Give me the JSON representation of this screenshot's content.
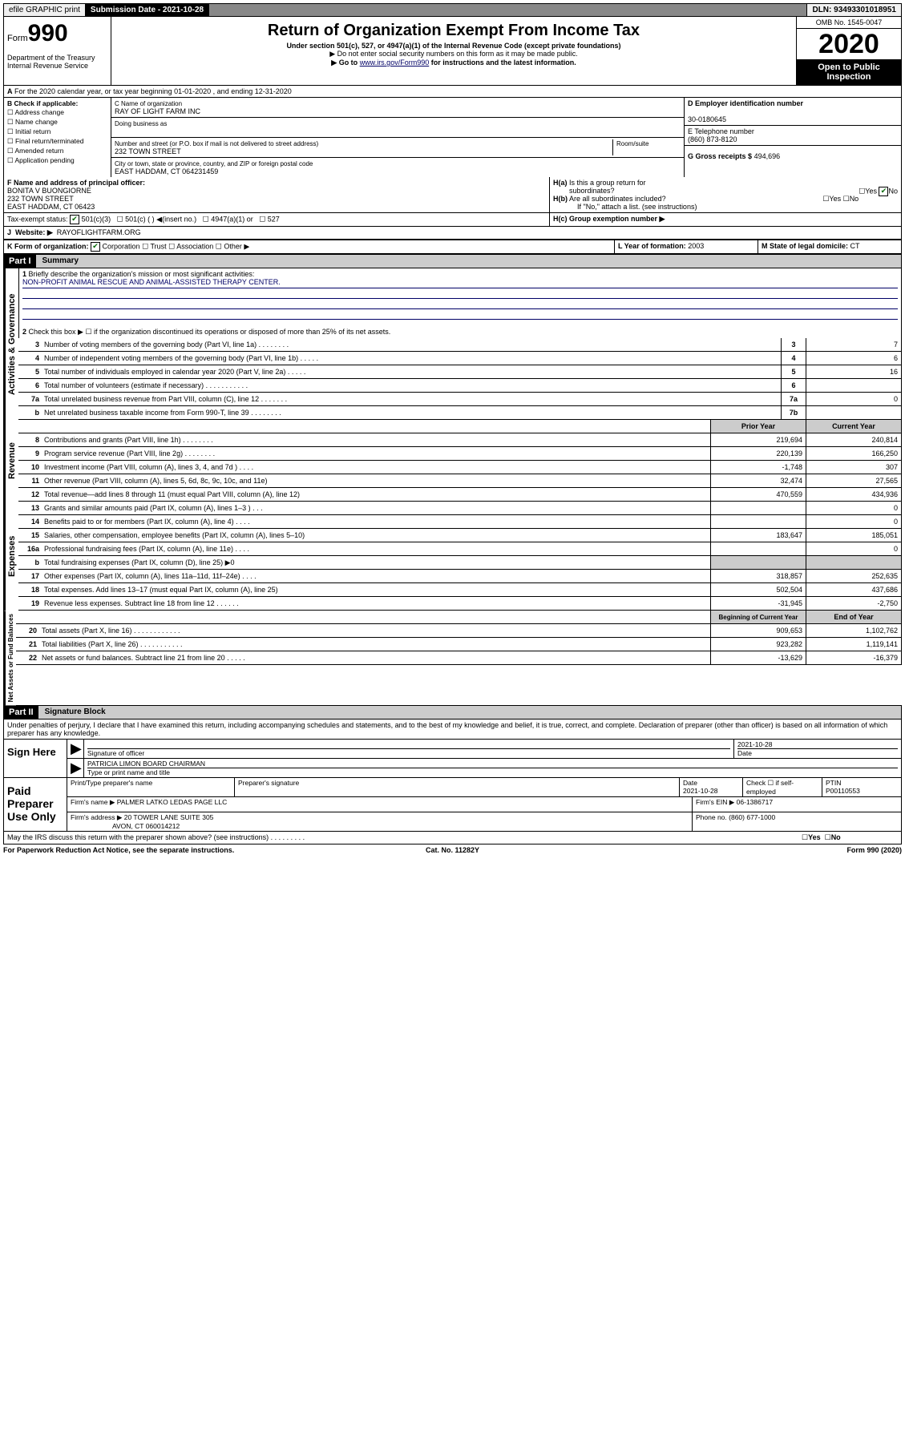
{
  "topbar": {
    "efile": "efile GRAPHIC print",
    "submission": "Submission Date - 2021-10-28",
    "dln": "DLN: 93493301018951"
  },
  "header": {
    "form_prefix": "Form",
    "form_num": "990",
    "dept": "Department of the Treasury\nInternal Revenue Service",
    "title": "Return of Organization Exempt From Income Tax",
    "sub": "Under section 501(c), 527, or 4947(a)(1) of the Internal Revenue Code (except private foundations)",
    "note1": "▶ Do not enter social security numbers on this form as it may be made public.",
    "note2_pre": "▶ Go to ",
    "note2_link": "www.irs.gov/Form990",
    "note2_post": " for instructions and the latest information.",
    "omb": "OMB No. 1545-0047",
    "year": "2020",
    "open": "Open to Public Inspection"
  },
  "row_a": "For the 2020 calendar year, or tax year beginning 01-01-2020     , and ending 12-31-2020",
  "box_b": {
    "label": "B Check if applicable:",
    "opts": [
      "Address change",
      "Name change",
      "Initial return",
      "Final return/terminated",
      "Amended return",
      "Application pending"
    ]
  },
  "box_c": {
    "name_label": "C Name of organization",
    "name": "RAY OF LIGHT FARM INC",
    "dba_label": "Doing business as",
    "addr_label": "Number and street (or P.O. box if mail is not delivered to street address)",
    "room_label": "Room/suite",
    "addr": "232 TOWN STREET",
    "city_label": "City or town, state or province, country, and ZIP or foreign postal code",
    "city": "EAST HADDAM, CT  064231459"
  },
  "box_d": {
    "label": "D Employer identification number",
    "val": "30-0180645"
  },
  "box_e": {
    "label": "E Telephone number",
    "val": "(860) 873-8120"
  },
  "box_g": {
    "label": "G Gross receipts $",
    "val": "494,696"
  },
  "box_f": {
    "label": "F Name and address of principal officer:",
    "name": "BONITA V BUONGIORNE",
    "addr1": "232 TOWN STREET",
    "addr2": "EAST HADDAM, CT  06423"
  },
  "box_h": {
    "a": "H(a) Is this a group return for subordinates?",
    "b": "H(b) Are all subordinates included?",
    "b_note": "If \"No,\" attach a list. (see instructions)",
    "c": "H(c) Group exemption number ▶",
    "yes": "Yes",
    "no": "No"
  },
  "tax_status": {
    "label": "Tax-exempt status:",
    "o1": "501(c)(3)",
    "o2": "501(c) (  ) ◀(insert no.)",
    "o3": "4947(a)(1) or",
    "o4": "527"
  },
  "website": {
    "label": "Website: ▶",
    "val": "RAYOFLIGHTFARM.ORG"
  },
  "box_k": {
    "label": "K Form of organization:",
    "o1": "Corporation",
    "o2": "Trust",
    "o3": "Association",
    "o4": "Other ▶"
  },
  "box_l": {
    "label": "L Year of formation:",
    "val": "2003"
  },
  "box_m": {
    "label": "M State of legal domicile:",
    "val": "CT"
  },
  "part1": {
    "num": "Part I",
    "title": "Summary",
    "q1": "Briefly describe the organization's mission or most significant activities:",
    "q1_ans": "NON-PROFIT ANIMAL RESCUE AND ANIMAL-ASSISTED THERAPY CENTER.",
    "q2": "Check this box ▶ ☐  if the organization discontinued its operations or disposed of more than 25% of its net assets."
  },
  "section_labels": {
    "gov": "Activities & Governance",
    "rev": "Revenue",
    "exp": "Expenses",
    "net": "Net Assets or Fund Balances"
  },
  "gov_lines": [
    {
      "n": "3",
      "t": "Number of voting members of the governing body (Part VI, line 1a)  .   .   .   .   .   .   .   .",
      "box": "3",
      "v": "7"
    },
    {
      "n": "4",
      "t": "Number of independent voting members of the governing body (Part VI, line 1b)  .   .   .   .   .",
      "box": "4",
      "v": "6"
    },
    {
      "n": "5",
      "t": "Total number of individuals employed in calendar year 2020 (Part V, line 2a)  .   .   .   .   .",
      "box": "5",
      "v": "16"
    },
    {
      "n": "6",
      "t": "Total number of volunteers (estimate if necessary)  .   .   .   .   .   .   .   .   .   .   .",
      "box": "6",
      "v": ""
    },
    {
      "n": "7a",
      "t": "Total unrelated business revenue from Part VIII, column (C), line 12  .   .   .   .   .   .   .",
      "box": "7a",
      "v": "0"
    },
    {
      "n": "b",
      "t": "Net unrelated business taxable income from Form 990-T, line 39  .   .   .   .   .   .   .   .",
      "box": "7b",
      "v": ""
    }
  ],
  "col_headers": {
    "prior": "Prior Year",
    "current": "Current Year",
    "beg": "Beginning of Current Year",
    "end": "End of Year"
  },
  "rev_lines": [
    {
      "n": "8",
      "t": "Contributions and grants (Part VIII, line 1h)  .   .   .   .   .   .   .   .",
      "p": "219,694",
      "c": "240,814"
    },
    {
      "n": "9",
      "t": "Program service revenue (Part VIII, line 2g)  .   .   .   .   .   .   .   .",
      "p": "220,139",
      "c": "166,250"
    },
    {
      "n": "10",
      "t": "Investment income (Part VIII, column (A), lines 3, 4, and 7d )  .   .   .   .",
      "p": "-1,748",
      "c": "307"
    },
    {
      "n": "11",
      "t": "Other revenue (Part VIII, column (A), lines 5, 6d, 8c, 9c, 10c, and 11e)",
      "p": "32,474",
      "c": "27,565"
    },
    {
      "n": "12",
      "t": "Total revenue—add lines 8 through 11 (must equal Part VIII, column (A), line 12)",
      "p": "470,559",
      "c": "434,936"
    }
  ],
  "exp_lines": [
    {
      "n": "13",
      "t": "Grants and similar amounts paid (Part IX, column (A), lines 1–3 )  .   .   .",
      "p": "",
      "c": "0"
    },
    {
      "n": "14",
      "t": "Benefits paid to or for members (Part IX, column (A), line 4)  .   .   .   .",
      "p": "",
      "c": "0"
    },
    {
      "n": "15",
      "t": "Salaries, other compensation, employee benefits (Part IX, column (A), lines 5–10)",
      "p": "183,647",
      "c": "185,051"
    },
    {
      "n": "16a",
      "t": "Professional fundraising fees (Part IX, column (A), line 11e)  .   .   .   .",
      "p": "",
      "c": "0"
    },
    {
      "n": "b",
      "t": "Total fundraising expenses (Part IX, column (D), line 25) ▶0",
      "p": null,
      "c": null
    },
    {
      "n": "17",
      "t": "Other expenses (Part IX, column (A), lines 11a–11d, 11f–24e)  .   .   .   .",
      "p": "318,857",
      "c": "252,635"
    },
    {
      "n": "18",
      "t": "Total expenses. Add lines 13–17 (must equal Part IX, column (A), line 25)",
      "p": "502,504",
      "c": "437,686"
    },
    {
      "n": "19",
      "t": "Revenue less expenses. Subtract line 18 from line 12  .   .   .   .   .   .",
      "p": "-31,945",
      "c": "-2,750"
    }
  ],
  "net_lines": [
    {
      "n": "20",
      "t": "Total assets (Part X, line 16)  .   .   .   .   .   .   .   .   .   .   .   .",
      "p": "909,653",
      "c": "1,102,762"
    },
    {
      "n": "21",
      "t": "Total liabilities (Part X, line 26)  .   .   .   .   .   .   .   .   .   .   .",
      "p": "923,282",
      "c": "1,119,141"
    },
    {
      "n": "22",
      "t": "Net assets or fund balances. Subtract line 21 from line 20  .   .   .   .   .",
      "p": "-13,629",
      "c": "-16,379"
    }
  ],
  "part2": {
    "num": "Part II",
    "title": "Signature Block",
    "decl": "Under penalties of perjury, I declare that I have examined this return, including accompanying schedules and statements, and to the best of my knowledge and belief, it is true, correct, and complete. Declaration of preparer (other than officer) is based on all information of which preparer has any knowledge."
  },
  "sign": {
    "label": "Sign Here",
    "sig_label": "Signature of officer",
    "date": "2021-10-28",
    "date_label": "Date",
    "name": "PATRICIA LIMON  BOARD CHAIRMAN",
    "name_label": "Type or print name and title"
  },
  "preparer": {
    "label": "Paid Preparer Use Only",
    "h1": "Print/Type preparer's name",
    "h2": "Preparer's signature",
    "h3": "Date",
    "h3v": "2021-10-28",
    "h4": "Check ☐ if self-employed",
    "h5": "PTIN",
    "h5v": "P00110553",
    "firm_label": "Firm's name    ▶",
    "firm": "PALMER LATKO LEDAS PAGE LLC",
    "ein_label": "Firm's EIN ▶",
    "ein": "06-1386717",
    "addr_label": "Firm's address ▶",
    "addr1": "20 TOWER LANE SUITE 305",
    "addr2": "AVON, CT  060014212",
    "phone_label": "Phone no.",
    "phone": "(860) 677-1000"
  },
  "discuss": "May the IRS discuss this return with the preparer shown above? (see instructions)  .   .   .   .   .   .   .   .   .",
  "footer": {
    "l": "For Paperwork Reduction Act Notice, see the separate instructions.",
    "c": "Cat. No. 11282Y",
    "r": "Form 990 (2020)"
  }
}
